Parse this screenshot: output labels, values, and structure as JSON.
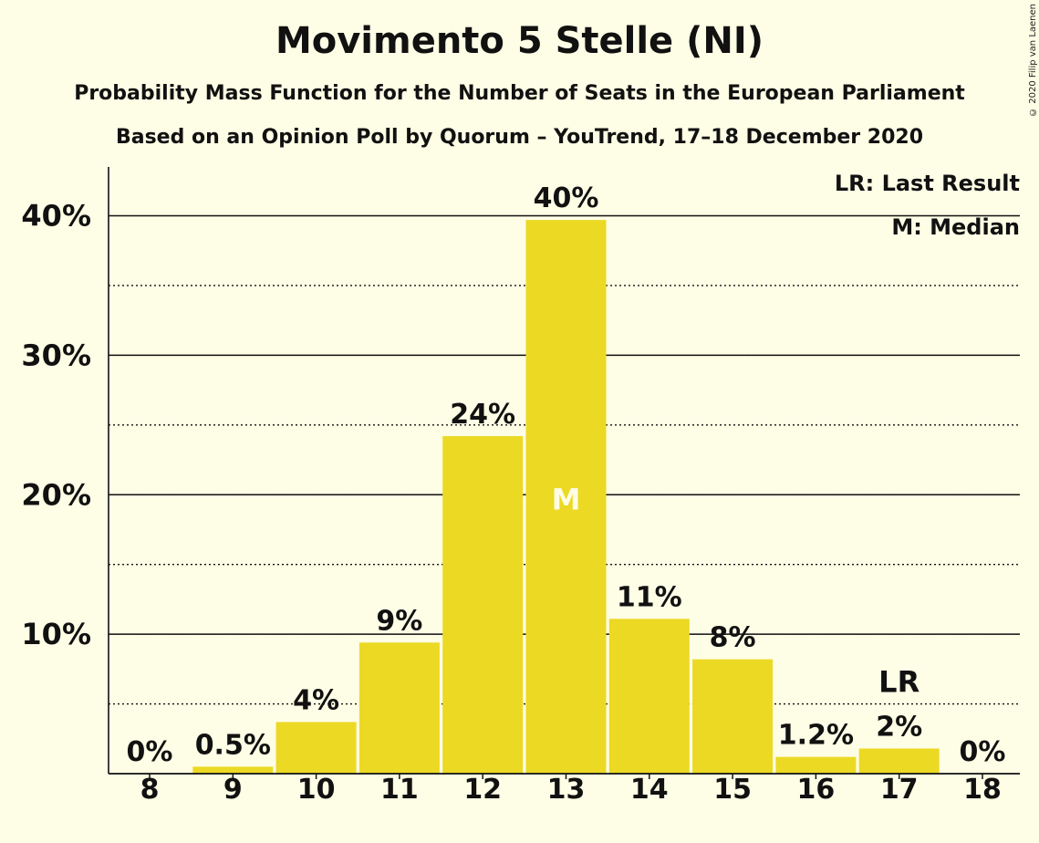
{
  "header": {
    "title": "Movimento 5 Stelle (NI)",
    "subtitle": "Probability Mass Function for the Number of Seats in the European Parliament",
    "source": "Based on an Opinion Poll by Quorum – YouTrend, 17–18 December 2020",
    "copyright": "© 2020 Filip van Laenen"
  },
  "legend": {
    "last_result": "LR: Last Result",
    "median": "M: Median"
  },
  "colors": {
    "background": "#fefde5",
    "bar": "#ecd924",
    "median_label": "#fefde5",
    "text": "#111111"
  },
  "chart_data": {
    "type": "bar",
    "categories": [
      "8",
      "9",
      "10",
      "11",
      "12",
      "13",
      "14",
      "15",
      "16",
      "17",
      "18"
    ],
    "values": [
      0,
      0.5,
      3.7,
      9.4,
      24.2,
      39.7,
      11.1,
      8.2,
      1.2,
      1.8,
      0
    ],
    "data_labels": [
      "0%",
      "0.5%",
      "4%",
      "9%",
      "24%",
      "40%",
      "11%",
      "8%",
      "1.2%",
      "2%",
      "0%"
    ],
    "ylim": [
      0,
      43.5
    ],
    "yticks": [
      10,
      20,
      30,
      40
    ],
    "ytick_labels": [
      "10%",
      "20%",
      "30%",
      "40%"
    ],
    "minor_gridlines": [
      5,
      15,
      25,
      35
    ],
    "median_category": "13",
    "median_marker": "M",
    "last_result_category": "17",
    "last_result_marker": "LR",
    "legend_position": "top-right",
    "xlabel": "",
    "ylabel": ""
  }
}
